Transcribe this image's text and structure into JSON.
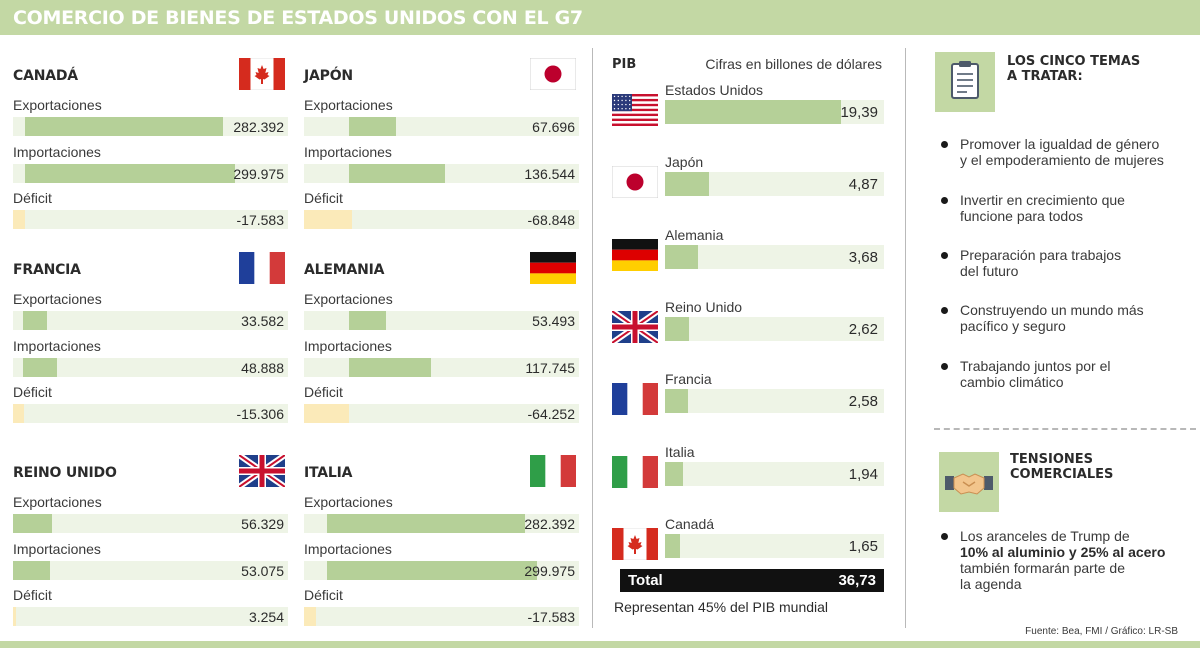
{
  "title": "COMERCIO DE BIENES DE ESTADOS UNIDOS CON EL G7",
  "labels": {
    "exports": "Exportaciones",
    "imports": "Importaciones",
    "deficit": "Déficit"
  },
  "colors": {
    "header": "#c3d8a4",
    "bar": "#b5d098",
    "track": "#eef4e6",
    "deficit": "#fbeab9"
  },
  "countries": [
    {
      "name": "CANADÁ",
      "flag": "canada-flag",
      "exports": "282.392",
      "imports": "299.975",
      "deficit": "-17.583"
    },
    {
      "name": "JAPÓN",
      "flag": "japan-flag",
      "exports": "67.696",
      "imports": "136.544",
      "deficit": "-68.848"
    },
    {
      "name": "FRANCIA",
      "flag": "france-flag",
      "exports": "33.582",
      "imports": "48.888",
      "deficit": "-15.306"
    },
    {
      "name": "ALEMANIA",
      "flag": "germany-flag",
      "exports": "53.493",
      "imports": "117.745",
      "deficit": "-64.252"
    },
    {
      "name": "REINO UNIDO",
      "flag": "uk-flag",
      "exports": "56.329",
      "imports": "53.075",
      "deficit": "3.254"
    },
    {
      "name": "ITALIA",
      "flag": "italy-flag",
      "exports": "282.392",
      "imports": "299.975",
      "deficit": "-17.583"
    }
  ],
  "pib": {
    "title": "PIB",
    "note": "Cifras en billones de dólares",
    "rows": [
      {
        "name": "Estados Unidos",
        "flag": "usa-flag",
        "value": "19,39"
      },
      {
        "name": "Japón",
        "flag": "japan-flag",
        "value": "4,87"
      },
      {
        "name": "Alemania",
        "flag": "germany-flag",
        "value": "3,68"
      },
      {
        "name": "Reino Unido",
        "flag": "uk-flag",
        "value": "2,62"
      },
      {
        "name": "Francia",
        "flag": "france-flag",
        "value": "2,58"
      },
      {
        "name": "Italia",
        "flag": "italy-flag",
        "value": "1,94"
      },
      {
        "name": "Canadá",
        "flag": "canada-flag",
        "value": "1,65"
      }
    ],
    "total_label": "Total",
    "total_value": "36,73",
    "footnote": "Representan 45% del PIB mundial"
  },
  "themes": {
    "heading_line1": "LOS CINCO TEMAS",
    "heading_line2": "A TRATAR:",
    "icon": "clipboard-icon",
    "items": [
      {
        "line1": "Promover la igualdad de género",
        "line2": "y el empoderamiento de mujeres"
      },
      {
        "line1": "Invertir en crecimiento que",
        "line2": "funcione para todos"
      },
      {
        "line1": "Preparación para trabajos",
        "line2": "del futuro"
      },
      {
        "line1": "Construyendo un mundo más",
        "line2": "pacífico y seguro"
      },
      {
        "line1": "Trabajando juntos por el",
        "line2": "cambio climático"
      }
    ]
  },
  "tensions": {
    "heading_line1": "TENSIONES",
    "heading_line2": "COMERCIALES",
    "icon": "handshake-icon",
    "line1": "Los aranceles de Trump de",
    "line2": "10% al aluminio y 25% al acero",
    "line3": "también formarán parte de",
    "line4": "la agenda"
  },
  "source": "Fuente: Bea, FMI / Gráfico: LR-SB",
  "chart_data": [
    {
      "type": "bar",
      "title": "COMERCIO DE BIENES DE ESTADOS UNIDOS CON EL G7",
      "categories": [
        "CANADÁ",
        "JAPÓN",
        "FRANCIA",
        "ALEMANIA",
        "REINO UNIDO",
        "ITALIA"
      ],
      "series": [
        {
          "name": "Exportaciones",
          "values": [
            282392,
            67696,
            33582,
            53493,
            56329,
            282392
          ]
        },
        {
          "name": "Importaciones",
          "values": [
            299975,
            136544,
            48888,
            117745,
            53075,
            299975
          ]
        },
        {
          "name": "Déficit",
          "values": [
            -17583,
            -68848,
            -15306,
            -64252,
            3254,
            -17583
          ]
        }
      ],
      "orientation": "horizontal"
    },
    {
      "type": "bar",
      "title": "PIB",
      "subtitle": "Cifras en billones de dólares",
      "categories": [
        "Estados Unidos",
        "Japón",
        "Alemania",
        "Reino Unido",
        "Francia",
        "Italia",
        "Canadá"
      ],
      "values": [
        19.39,
        4.87,
        3.68,
        2.62,
        2.58,
        1.94,
        1.65
      ],
      "total": 36.73,
      "orientation": "horizontal"
    }
  ]
}
